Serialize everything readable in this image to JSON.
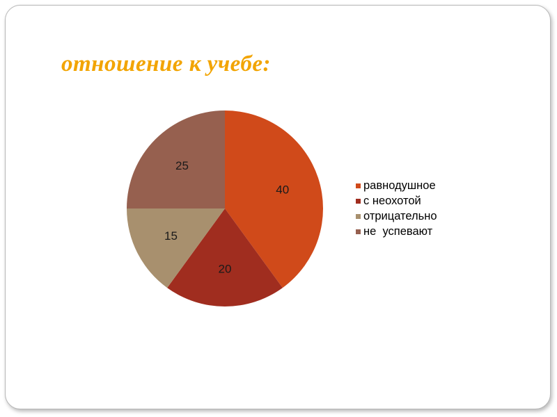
{
  "slide": {
    "title": "отношение к учебе:"
  },
  "chart_data": {
    "type": "pie",
    "title": "отношение к учебе:",
    "categories": [
      "равнодушное",
      "с неохотой",
      "отрицательно",
      "не  успевают"
    ],
    "values": [
      40,
      20,
      15,
      25
    ],
    "colors": [
      "#d04a1a",
      "#a02d1f",
      "#a8906e",
      "#96604f"
    ],
    "data_labels": [
      "40",
      "20",
      "15",
      "25"
    ],
    "legend_position": "right",
    "start_angle_deg": 0,
    "direction": "clockwise"
  }
}
